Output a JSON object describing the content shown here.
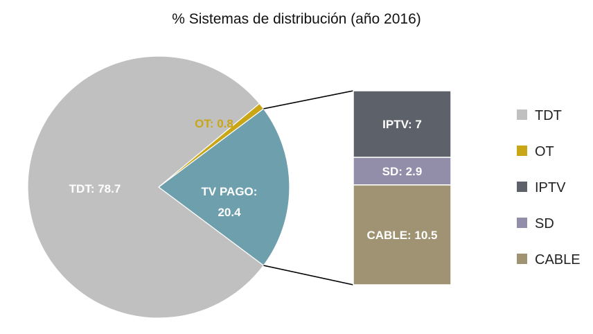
{
  "chart_data": {
    "type": "bar-of-pie",
    "title": "% Sistemas de distribución (año 2016)",
    "pie": {
      "slices": [
        {
          "name": "TDT",
          "value": 78.7,
          "label": "TDT: 78.7",
          "color": "#c0c0c0"
        },
        {
          "name": "OT",
          "value": 0.8,
          "label": "OT: 0.8",
          "color": "#c8a616"
        },
        {
          "name": "TV PAGO",
          "value": 20.4,
          "label_line1": "TV PAGO:",
          "label_line2": "20.4",
          "color": "#6e9fad"
        }
      ]
    },
    "bar": {
      "stacks": [
        {
          "name": "IPTV",
          "value": 7,
          "label": "IPTV: 7",
          "color": "#5d6169"
        },
        {
          "name": "SD",
          "value": 2.9,
          "label": "SD: 2.9",
          "color": "#928da8"
        },
        {
          "name": "CABLE",
          "value": 10.5,
          "label": "CABLE: 10.5",
          "color": "#a09373"
        }
      ]
    },
    "legend": {
      "position": "right",
      "entries": [
        {
          "name": "TDT",
          "color": "#c0c0c0"
        },
        {
          "name": "OT",
          "color": "#c8a616"
        },
        {
          "name": "IPTV",
          "color": "#5d6169"
        },
        {
          "name": "SD",
          "color": "#928da8"
        },
        {
          "name": "CABLE",
          "color": "#a09373"
        }
      ]
    }
  }
}
